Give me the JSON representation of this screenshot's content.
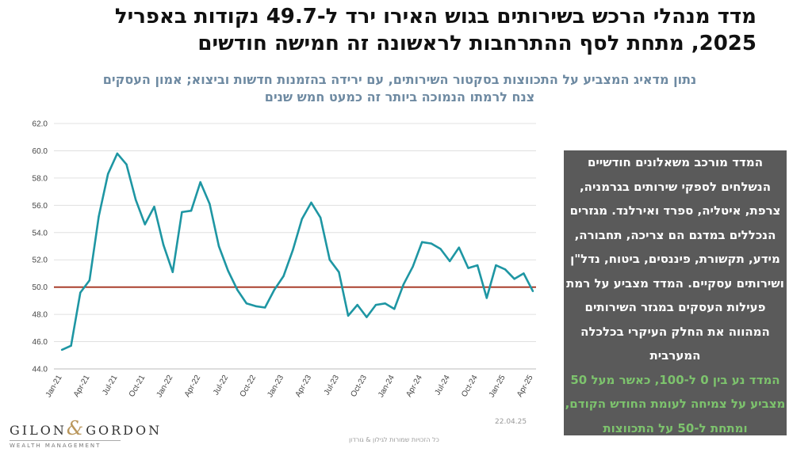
{
  "title": "מדד מנהלי הרכש בשירותים בגוש האירו ירד ל-49.7 נקודות באפריל 2025, מתחת לסף ההתרחבות לראשונה זה חמישה חודשים",
  "subtitle": {
    "line1": "נתון מדאיג המצביע על התכווצות בסקטור השירותים, עם ירידה בהזמנות חדשות וביצוא; אמון העסקים",
    "line2": "צנח לרמתו הנמוכה ביותר זה כמעט חמש שנים"
  },
  "textbox": {
    "white": "המדד מורכב משאלונים חודשיים הנשלחים לספקי שירותים בגרמניה, צרפת, איטליה, ספרד ואירלנד. מגזרים הנכללים במדגם הם צריכה, תחבורה, מידע, תקשורת, פיננסים, ביטוח, נדל\"ן ושירותים עסקיים. המדד מצביע על רמת פעילות העסקים במגזר השירותים המהווה את החלק העיקרי בכלכלה המערבית",
    "green": "המדד נע בין 0 ל-100, כאשר מעל 50 מצביע על צמיחה לעומת החודש הקודם, ומתחת ל-50 על התכווצות"
  },
  "logo": {
    "name_left": "GILON",
    "amp": "&",
    "name_right": "GORDON",
    "sub": "WEALTH MANAGEMENT"
  },
  "date": "22.04.25",
  "rights": "כל הזכויות שמורות לגילון & גורדון",
  "colors": {
    "line": "#1e96a3",
    "threshold": "#a3321f",
    "textbox_bg": "#5a5a5a",
    "green_text": "#7dc36d",
    "subtitle": "#6e8aa2"
  },
  "chart_data": {
    "type": "line",
    "xlabel": "",
    "ylabel": "",
    "ylim": [
      44.0,
      62.0
    ],
    "yticks": [
      "44.0",
      "46.0",
      "48.0",
      "50.0",
      "52.0",
      "54.0",
      "56.0",
      "58.0",
      "60.0",
      "62.0"
    ],
    "xticks": [
      "Jan-21",
      "Apr-21",
      "Jul-21",
      "Oct-21",
      "Jan-22",
      "Apr-22",
      "Jul-22",
      "Oct-22",
      "Jan-23",
      "Apr-23",
      "Jul-23",
      "Oct-23",
      "Jan-24",
      "Apr-24",
      "Jul-24",
      "Oct-24",
      "Jan-25",
      "Apr-25"
    ],
    "grid": "horizontal",
    "threshold": 50,
    "x": [
      "Jan-21",
      "Feb-21",
      "Mar-21",
      "Apr-21",
      "May-21",
      "Jun-21",
      "Jul-21",
      "Aug-21",
      "Sep-21",
      "Oct-21",
      "Nov-21",
      "Dec-21",
      "Jan-22",
      "Feb-22",
      "Mar-22",
      "Apr-22",
      "May-22",
      "Jun-22",
      "Jul-22",
      "Aug-22",
      "Sep-22",
      "Oct-22",
      "Nov-22",
      "Dec-22",
      "Jan-23",
      "Feb-23",
      "Mar-23",
      "Apr-23",
      "May-23",
      "Jun-23",
      "Jul-23",
      "Aug-23",
      "Sep-23",
      "Oct-23",
      "Nov-23",
      "Dec-23",
      "Jan-24",
      "Feb-24",
      "Mar-24",
      "Apr-24",
      "May-24",
      "Jun-24",
      "Jul-24",
      "Aug-24",
      "Sep-24",
      "Oct-24",
      "Nov-24",
      "Dec-24",
      "Jan-25",
      "Feb-25",
      "Mar-25",
      "Apr-25"
    ],
    "series": [
      {
        "values": [
          45.4,
          45.7,
          49.6,
          50.5,
          55.2,
          58.3,
          59.8,
          59.0,
          56.4,
          54.6,
          55.9,
          53.1,
          51.1,
          55.5,
          55.6,
          57.7,
          56.1,
          53.0,
          51.2,
          49.8,
          48.8,
          48.6,
          48.5,
          49.8,
          50.8,
          52.7,
          55.0,
          56.2,
          55.1,
          52.0,
          51.1,
          47.9,
          48.7,
          47.8,
          48.7,
          48.8,
          48.4,
          50.2,
          51.5,
          53.3,
          53.2,
          52.8,
          51.9,
          52.9,
          51.4,
          51.6,
          49.2,
          51.6,
          51.3,
          50.6,
          51.0,
          49.7
        ]
      }
    ]
  }
}
